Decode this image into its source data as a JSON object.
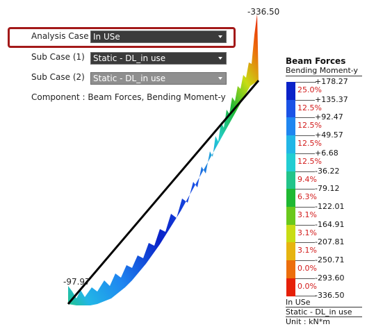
{
  "controls": {
    "analysis_case_label": "Analysis Case",
    "analysis_case_value": "In USe",
    "sub_case1_label": "Sub Case (1)",
    "sub_case1_value": "Static - DL_in use",
    "sub_case2_label": "Sub Case (2)",
    "sub_case2_value": "Static - DL_in use",
    "component_text": "Component : Beam Forces, Bending Moment-y"
  },
  "diagram": {
    "max_label": "-336.50",
    "min_label": "-97.97"
  },
  "legend": {
    "title": "Beam Forces",
    "subtitle": "Bending Moment-y",
    "ticks": [
      "+178.27",
      "+135.37",
      "+92.47",
      "+49.57",
      "+6.68",
      "-36.22",
      "-79.12",
      "-122.01",
      "-164.91",
      "-207.81",
      "-250.71",
      "-293.60",
      "-336.50"
    ],
    "percents": [
      "25.0%",
      "12.5%",
      "12.5%",
      "12.5%",
      "12.5%",
      "9.4%",
      "6.3%",
      "3.1%",
      "3.1%",
      "3.1%",
      "0.0%",
      "0.0%"
    ],
    "colors": [
      "#0a22c8",
      "#1a52e6",
      "#1f86f0",
      "#22b6e6",
      "#22cdd2",
      "#22c48a",
      "#1fb832",
      "#6ac81c",
      "#c8dc14",
      "#e6b410",
      "#ec6e0c",
      "#e62008"
    ],
    "footer_case": "In USe",
    "footer_subcase": "Static - DL_in use",
    "footer_unit": "Unit : kN*m"
  }
}
